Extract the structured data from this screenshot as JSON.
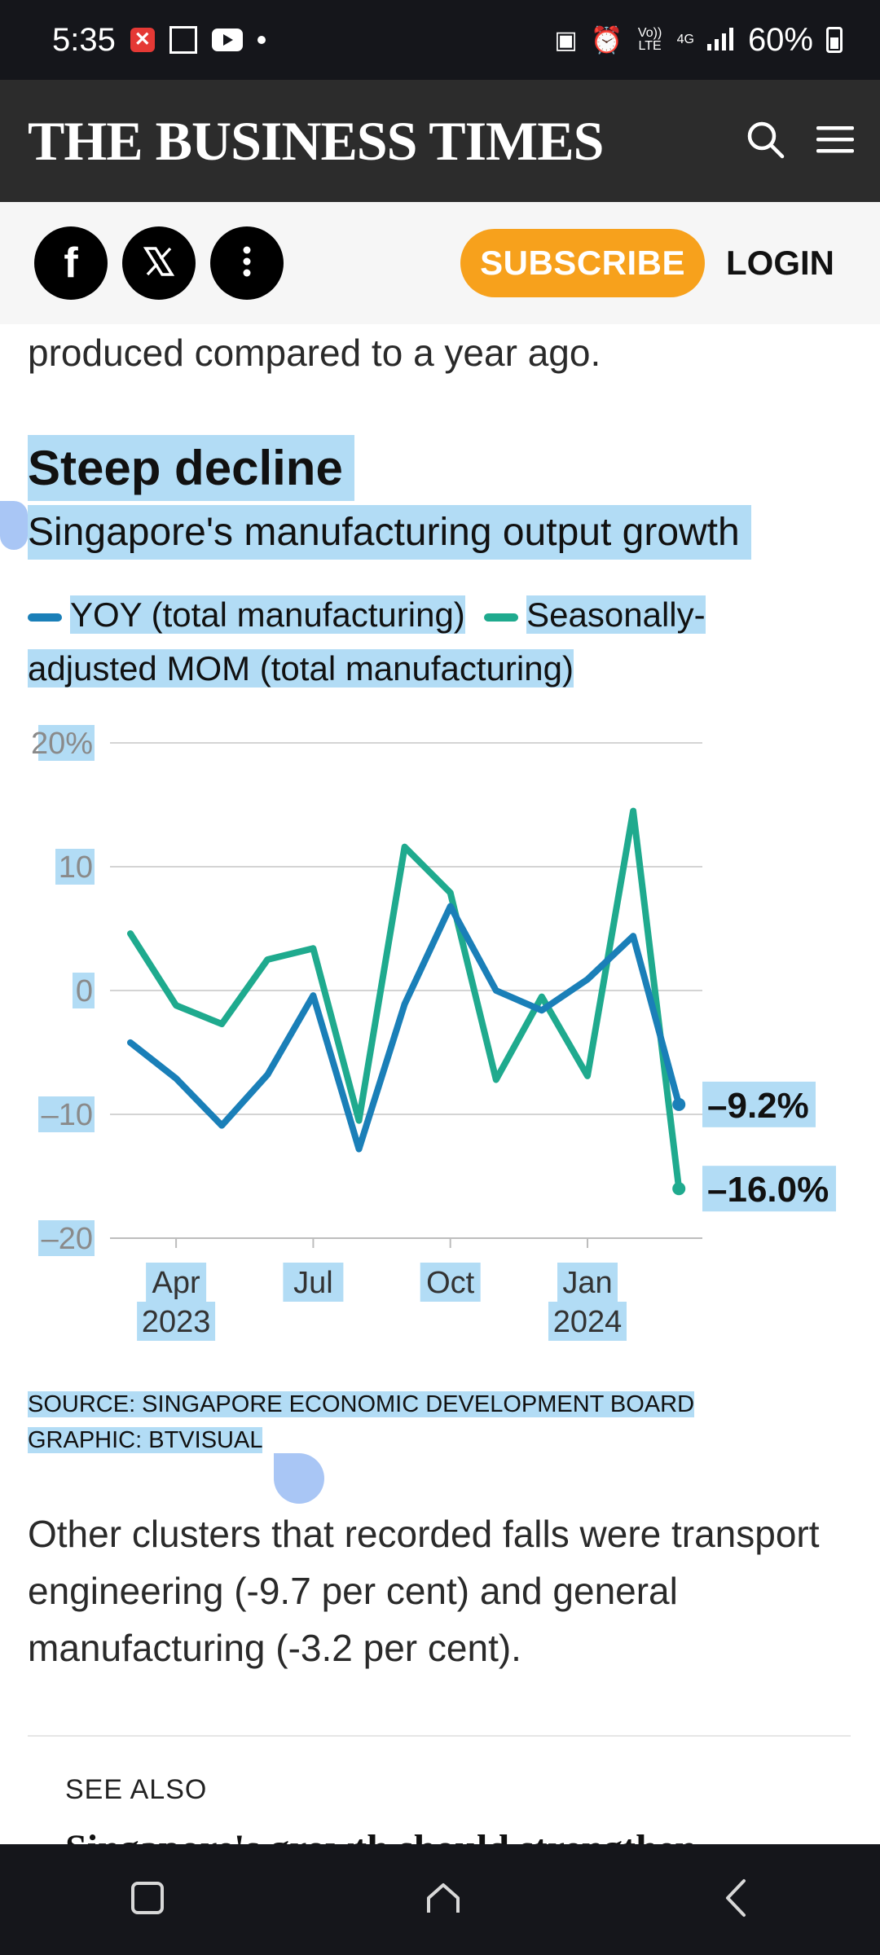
{
  "status_bar": {
    "time": "5:35",
    "battery": "60%",
    "network": "4G",
    "volte": "Vo)) LTE"
  },
  "header": {
    "logo": "THE BUSINESS TIMES"
  },
  "actions": {
    "subscribe": "SUBSCRIBE",
    "login": "LOGIN"
  },
  "article": {
    "intro_tail": "produced compared to a year ago.",
    "after_chart": "Other clusters that recorded falls were transport engineering (-9.7 per cent) and general manufacturing (-3.2 per cent)."
  },
  "chart": {
    "title": "Steep decline",
    "subtitle": "Singapore's manufacturing output growth",
    "source": "SOURCE: SINGAPORE ECONOMIC DEVELOPMENT BOARD",
    "graphic": "GRAPHIC: BTVISUAL"
  },
  "chart_data": {
    "type": "line",
    "x": [
      "2023-03",
      "2023-04",
      "2023-05",
      "2023-06",
      "2023-07",
      "2023-08",
      "2023-09",
      "2023-10",
      "2023-11",
      "2023-12",
      "2024-01",
      "2024-02",
      "2024-03"
    ],
    "x_tick_labels": [
      {
        "at": "2023-04",
        "label": "Apr",
        "sub": "2023"
      },
      {
        "at": "2023-07",
        "label": "Jul",
        "sub": ""
      },
      {
        "at": "2023-10",
        "label": "Oct",
        "sub": ""
      },
      {
        "at": "2024-01",
        "label": "Jan",
        "sub": "2024"
      }
    ],
    "y_ticks": [
      20,
      10,
      0,
      -10,
      -20
    ],
    "y_tick_labels": [
      "20%",
      "10",
      "0",
      "–10",
      "–20"
    ],
    "ylim": [
      -20,
      20
    ],
    "grid": true,
    "legend": "top",
    "series": [
      {
        "name": "YOY (total manufacturing)",
        "color": "#1a7fb8",
        "values": [
          -4.2,
          -7.1,
          -10.9,
          -6.8,
          -0.4,
          -12.8,
          -1.1,
          6.8,
          0.0,
          -1.6,
          0.9,
          4.4,
          -9.2
        ],
        "end_label": "–9.2%"
      },
      {
        "name": "Seasonally-adjusted MOM (total manufacturing)",
        "color": "#1faa8e",
        "values": [
          4.6,
          -1.2,
          -2.7,
          2.5,
          3.4,
          -10.5,
          11.6,
          7.9,
          -7.2,
          -0.5,
          -6.9,
          14.5,
          -16.0
        ],
        "end_label": "–16.0%"
      }
    ]
  },
  "see_also": {
    "label": "SEE ALSO",
    "headline": "Singapore's growth should strengthen"
  }
}
